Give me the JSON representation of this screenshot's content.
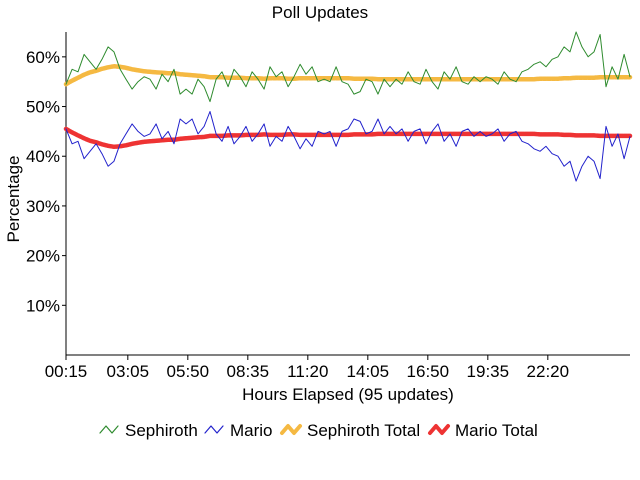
{
  "chart_data": {
    "type": "line",
    "title": "Poll Updates",
    "xlabel": "Hours Elapsed (95 updates)",
    "ylabel": "Percentage",
    "ylim": [
      0,
      65
    ],
    "xlim": [
      0.25,
      26.1
    ],
    "grid": false,
    "legend_position": "bottom",
    "x_tick_labels": [
      "00:15",
      "03:05",
      "05:50",
      "08:35",
      "11:20",
      "14:05",
      "16:50",
      "19:35",
      "22:20"
    ],
    "x_tick_values": [
      0.25,
      3.0833,
      5.8333,
      8.5833,
      11.3333,
      14.0833,
      16.8333,
      19.5833,
      22.3333
    ],
    "y_tick_labels": [
      "10%",
      "20%",
      "30%",
      "40%",
      "50%",
      "60%"
    ],
    "y_tick_values": [
      10,
      20,
      30,
      40,
      50,
      60
    ],
    "series": [
      {
        "name": "Sephiroth",
        "color": "#2e8b2e",
        "style": "thin",
        "x": [
          0.25,
          0.53,
          0.8,
          1.08,
          1.35,
          1.63,
          1.9,
          2.18,
          2.45,
          2.73,
          3.0,
          3.28,
          3.55,
          3.83,
          4.1,
          4.38,
          4.65,
          4.93,
          5.2,
          5.48,
          5.75,
          6.03,
          6.3,
          6.58,
          6.85,
          7.13,
          7.4,
          7.68,
          7.95,
          8.23,
          8.5,
          8.78,
          9.05,
          9.33,
          9.6,
          9.88,
          10.15,
          10.43,
          10.7,
          10.98,
          11.25,
          11.53,
          11.8,
          12.08,
          12.35,
          12.63,
          12.9,
          13.18,
          13.45,
          13.73,
          14.0,
          14.28,
          14.55,
          14.83,
          15.1,
          15.38,
          15.65,
          15.93,
          16.2,
          16.48,
          16.75,
          17.03,
          17.3,
          17.58,
          17.85,
          18.13,
          18.4,
          18.68,
          18.95,
          19.23,
          19.5,
          19.78,
          20.05,
          20.33,
          20.6,
          20.88,
          21.15,
          21.43,
          21.7,
          21.98,
          22.25,
          22.53,
          22.8,
          23.08,
          23.35,
          23.63,
          23.9,
          24.18,
          24.45,
          24.73,
          25.0,
          25.28,
          25.55,
          25.83,
          26.1
        ],
        "values": [
          54.5,
          57.5,
          57.0,
          60.5,
          59.0,
          57.5,
          59.5,
          62.0,
          61.0,
          57.5,
          55.5,
          53.5,
          55.0,
          56.0,
          55.5,
          53.5,
          56.5,
          55.0,
          57.5,
          52.5,
          53.5,
          52.5,
          55.5,
          54.0,
          51.0,
          55.5,
          57.0,
          54.0,
          57.5,
          56.0,
          54.0,
          57.0,
          55.5,
          53.5,
          58.0,
          56.0,
          57.0,
          54.0,
          56.0,
          58.5,
          56.5,
          58.0,
          55.0,
          55.5,
          55.0,
          58.0,
          55.0,
          54.5,
          52.5,
          53.0,
          55.5,
          55.0,
          52.5,
          55.5,
          54.0,
          55.5,
          54.5,
          57.0,
          55.0,
          54.5,
          57.5,
          55.0,
          53.5,
          57.0,
          55.5,
          58.0,
          55.0,
          54.5,
          56.0,
          55.0,
          56.0,
          55.5,
          54.5,
          57.0,
          55.5,
          55.0,
          57.0,
          57.5,
          58.5,
          59.0,
          58.0,
          59.5,
          60.0,
          62.0,
          61.0,
          65.0,
          62.0,
          60.0,
          61.0,
          64.5,
          54.0,
          58.0,
          55.5,
          60.5,
          56.0
        ]
      },
      {
        "name": "Mario",
        "color": "#2222cc",
        "style": "thin",
        "x": [
          0.25,
          0.53,
          0.8,
          1.08,
          1.35,
          1.63,
          1.9,
          2.18,
          2.45,
          2.73,
          3.0,
          3.28,
          3.55,
          3.83,
          4.1,
          4.38,
          4.65,
          4.93,
          5.2,
          5.48,
          5.75,
          6.03,
          6.3,
          6.58,
          6.85,
          7.13,
          7.4,
          7.68,
          7.95,
          8.23,
          8.5,
          8.78,
          9.05,
          9.33,
          9.6,
          9.88,
          10.15,
          10.43,
          10.7,
          10.98,
          11.25,
          11.53,
          11.8,
          12.08,
          12.35,
          12.63,
          12.9,
          13.18,
          13.45,
          13.73,
          14.0,
          14.28,
          14.55,
          14.83,
          15.1,
          15.38,
          15.65,
          15.93,
          16.2,
          16.48,
          16.75,
          17.03,
          17.3,
          17.58,
          17.85,
          18.13,
          18.4,
          18.68,
          18.95,
          19.23,
          19.5,
          19.78,
          20.05,
          20.33,
          20.6,
          20.88,
          21.15,
          21.43,
          21.7,
          21.98,
          22.25,
          22.53,
          22.8,
          23.08,
          23.35,
          23.63,
          23.9,
          24.18,
          24.45,
          24.73,
          25.0,
          25.28,
          25.55,
          25.83,
          26.1
        ],
        "values": [
          45.5,
          42.5,
          43.0,
          39.5,
          41.0,
          42.5,
          40.5,
          38.0,
          39.0,
          42.5,
          44.5,
          46.5,
          45.0,
          44.0,
          44.5,
          46.5,
          43.5,
          45.0,
          42.5,
          47.5,
          46.5,
          47.5,
          44.5,
          46.0,
          49.0,
          44.5,
          43.0,
          46.0,
          42.5,
          44.0,
          46.0,
          43.0,
          44.5,
          46.5,
          42.0,
          44.0,
          43.0,
          46.0,
          44.0,
          41.5,
          43.5,
          42.0,
          45.0,
          44.5,
          45.0,
          42.0,
          45.0,
          45.5,
          47.5,
          47.0,
          44.5,
          45.0,
          47.5,
          44.5,
          46.0,
          44.5,
          45.5,
          43.0,
          45.0,
          45.5,
          42.5,
          45.0,
          46.5,
          43.0,
          44.5,
          42.0,
          45.0,
          45.5,
          44.0,
          45.0,
          44.0,
          44.5,
          45.5,
          43.0,
          44.5,
          45.0,
          43.0,
          42.5,
          41.5,
          41.0,
          42.0,
          40.5,
          40.0,
          38.0,
          39.0,
          35.0,
          38.0,
          40.0,
          39.0,
          35.5,
          46.0,
          42.0,
          44.5,
          39.5,
          44.0
        ]
      },
      {
        "name": "Sephiroth Total",
        "color": "#f5b942",
        "style": "thick",
        "x": [
          0.25,
          0.53,
          0.8,
          1.08,
          1.35,
          1.63,
          1.9,
          2.18,
          2.45,
          2.73,
          3.0,
          3.28,
          3.55,
          3.83,
          4.1,
          4.38,
          4.65,
          4.93,
          5.2,
          5.48,
          5.75,
          6.03,
          6.3,
          6.58,
          6.85,
          7.13,
          7.4,
          7.68,
          7.95,
          8.23,
          8.5,
          8.78,
          9.05,
          9.33,
          9.6,
          9.88,
          10.15,
          10.43,
          10.7,
          10.98,
          11.25,
          11.53,
          11.8,
          12.08,
          12.35,
          12.63,
          12.9,
          13.18,
          13.45,
          13.73,
          14.0,
          14.28,
          14.55,
          14.83,
          15.1,
          15.38,
          15.65,
          15.93,
          16.2,
          16.48,
          16.75,
          17.03,
          17.3,
          17.58,
          17.85,
          18.13,
          18.4,
          18.68,
          18.95,
          19.23,
          19.5,
          19.78,
          20.05,
          20.33,
          20.6,
          20.88,
          21.15,
          21.43,
          21.7,
          21.98,
          22.25,
          22.53,
          22.8,
          23.08,
          23.35,
          23.63,
          23.9,
          24.18,
          24.45,
          24.73,
          25.0,
          25.28,
          25.55,
          25.83,
          26.1
        ],
        "values": [
          54.5,
          55.2,
          55.8,
          56.4,
          56.9,
          57.2,
          57.6,
          57.9,
          58.1,
          58.0,
          57.8,
          57.5,
          57.3,
          57.1,
          57.0,
          56.9,
          56.8,
          56.7,
          56.7,
          56.5,
          56.4,
          56.3,
          56.2,
          56.1,
          55.9,
          55.9,
          55.9,
          55.8,
          55.8,
          55.8,
          55.7,
          55.7,
          55.7,
          55.6,
          55.7,
          55.7,
          55.7,
          55.6,
          55.6,
          55.7,
          55.7,
          55.7,
          55.7,
          55.7,
          55.7,
          55.7,
          55.7,
          55.7,
          55.6,
          55.6,
          55.6,
          55.6,
          55.5,
          55.5,
          55.5,
          55.5,
          55.5,
          55.5,
          55.5,
          55.5,
          55.5,
          55.5,
          55.5,
          55.5,
          55.5,
          55.5,
          55.5,
          55.5,
          55.5,
          55.5,
          55.5,
          55.5,
          55.5,
          55.5,
          55.5,
          55.5,
          55.5,
          55.5,
          55.5,
          55.6,
          55.6,
          55.6,
          55.6,
          55.7,
          55.7,
          55.8,
          55.8,
          55.8,
          55.8,
          55.9,
          55.9,
          55.9,
          55.9,
          55.9,
          55.9
        ]
      },
      {
        "name": "Mario Total",
        "color": "#ee3333",
        "style": "thick",
        "x": [
          0.25,
          0.53,
          0.8,
          1.08,
          1.35,
          1.63,
          1.9,
          2.18,
          2.45,
          2.73,
          3.0,
          3.28,
          3.55,
          3.83,
          4.1,
          4.38,
          4.65,
          4.93,
          5.2,
          5.48,
          5.75,
          6.03,
          6.3,
          6.58,
          6.85,
          7.13,
          7.4,
          7.68,
          7.95,
          8.23,
          8.5,
          8.78,
          9.05,
          9.33,
          9.6,
          9.88,
          10.15,
          10.43,
          10.7,
          10.98,
          11.25,
          11.53,
          11.8,
          12.08,
          12.35,
          12.63,
          12.9,
          13.18,
          13.45,
          13.73,
          14.0,
          14.28,
          14.55,
          14.83,
          15.1,
          15.38,
          15.65,
          15.93,
          16.2,
          16.48,
          16.75,
          17.03,
          17.3,
          17.58,
          17.85,
          18.13,
          18.4,
          18.68,
          18.95,
          19.23,
          19.5,
          19.78,
          20.05,
          20.33,
          20.6,
          20.88,
          21.15,
          21.43,
          21.7,
          21.98,
          22.25,
          22.53,
          22.8,
          23.08,
          23.35,
          23.63,
          23.9,
          24.18,
          24.45,
          24.73,
          25.0,
          25.28,
          25.55,
          25.83,
          26.1
        ],
        "values": [
          45.5,
          44.8,
          44.2,
          43.6,
          43.1,
          42.8,
          42.4,
          42.1,
          41.9,
          42.0,
          42.2,
          42.5,
          42.7,
          42.9,
          43.0,
          43.1,
          43.2,
          43.3,
          43.3,
          43.5,
          43.6,
          43.7,
          43.8,
          43.9,
          44.1,
          44.1,
          44.1,
          44.2,
          44.2,
          44.2,
          44.3,
          44.3,
          44.3,
          44.4,
          44.3,
          44.3,
          44.3,
          44.4,
          44.4,
          44.3,
          44.3,
          44.3,
          44.3,
          44.3,
          44.3,
          44.3,
          44.3,
          44.3,
          44.4,
          44.4,
          44.4,
          44.4,
          44.5,
          44.5,
          44.5,
          44.5,
          44.5,
          44.5,
          44.5,
          44.5,
          44.5,
          44.5,
          44.5,
          44.5,
          44.5,
          44.5,
          44.5,
          44.5,
          44.5,
          44.5,
          44.5,
          44.5,
          44.5,
          44.5,
          44.5,
          44.5,
          44.5,
          44.5,
          44.5,
          44.4,
          44.4,
          44.4,
          44.4,
          44.3,
          44.3,
          44.2,
          44.2,
          44.2,
          44.2,
          44.1,
          44.1,
          44.1,
          44.1,
          44.1,
          44.1
        ]
      }
    ]
  }
}
